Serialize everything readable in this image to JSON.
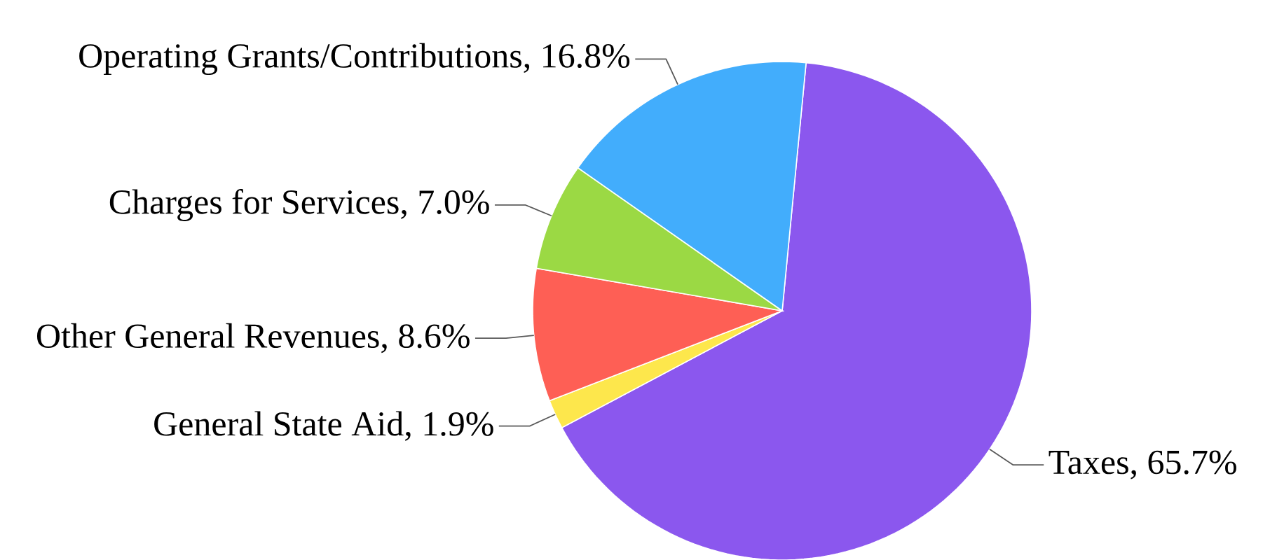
{
  "chart_data": {
    "type": "pie",
    "categories": [
      "Taxes",
      "General State Aid",
      "Other General Revenues",
      "Charges for Services",
      "Operating Grants/Contributions"
    ],
    "values": [
      65.7,
      1.9,
      8.6,
      7.0,
      16.8
    ],
    "colors": [
      "#8b57ee",
      "#fde74c",
      "#fe5f55",
      "#9bd944",
      "#42adfc"
    ],
    "value_labels": [
      ", 65.7%",
      ", 1.9%",
      ", 8.6%",
      ", 7.0%",
      ", 16.8%"
    ]
  }
}
